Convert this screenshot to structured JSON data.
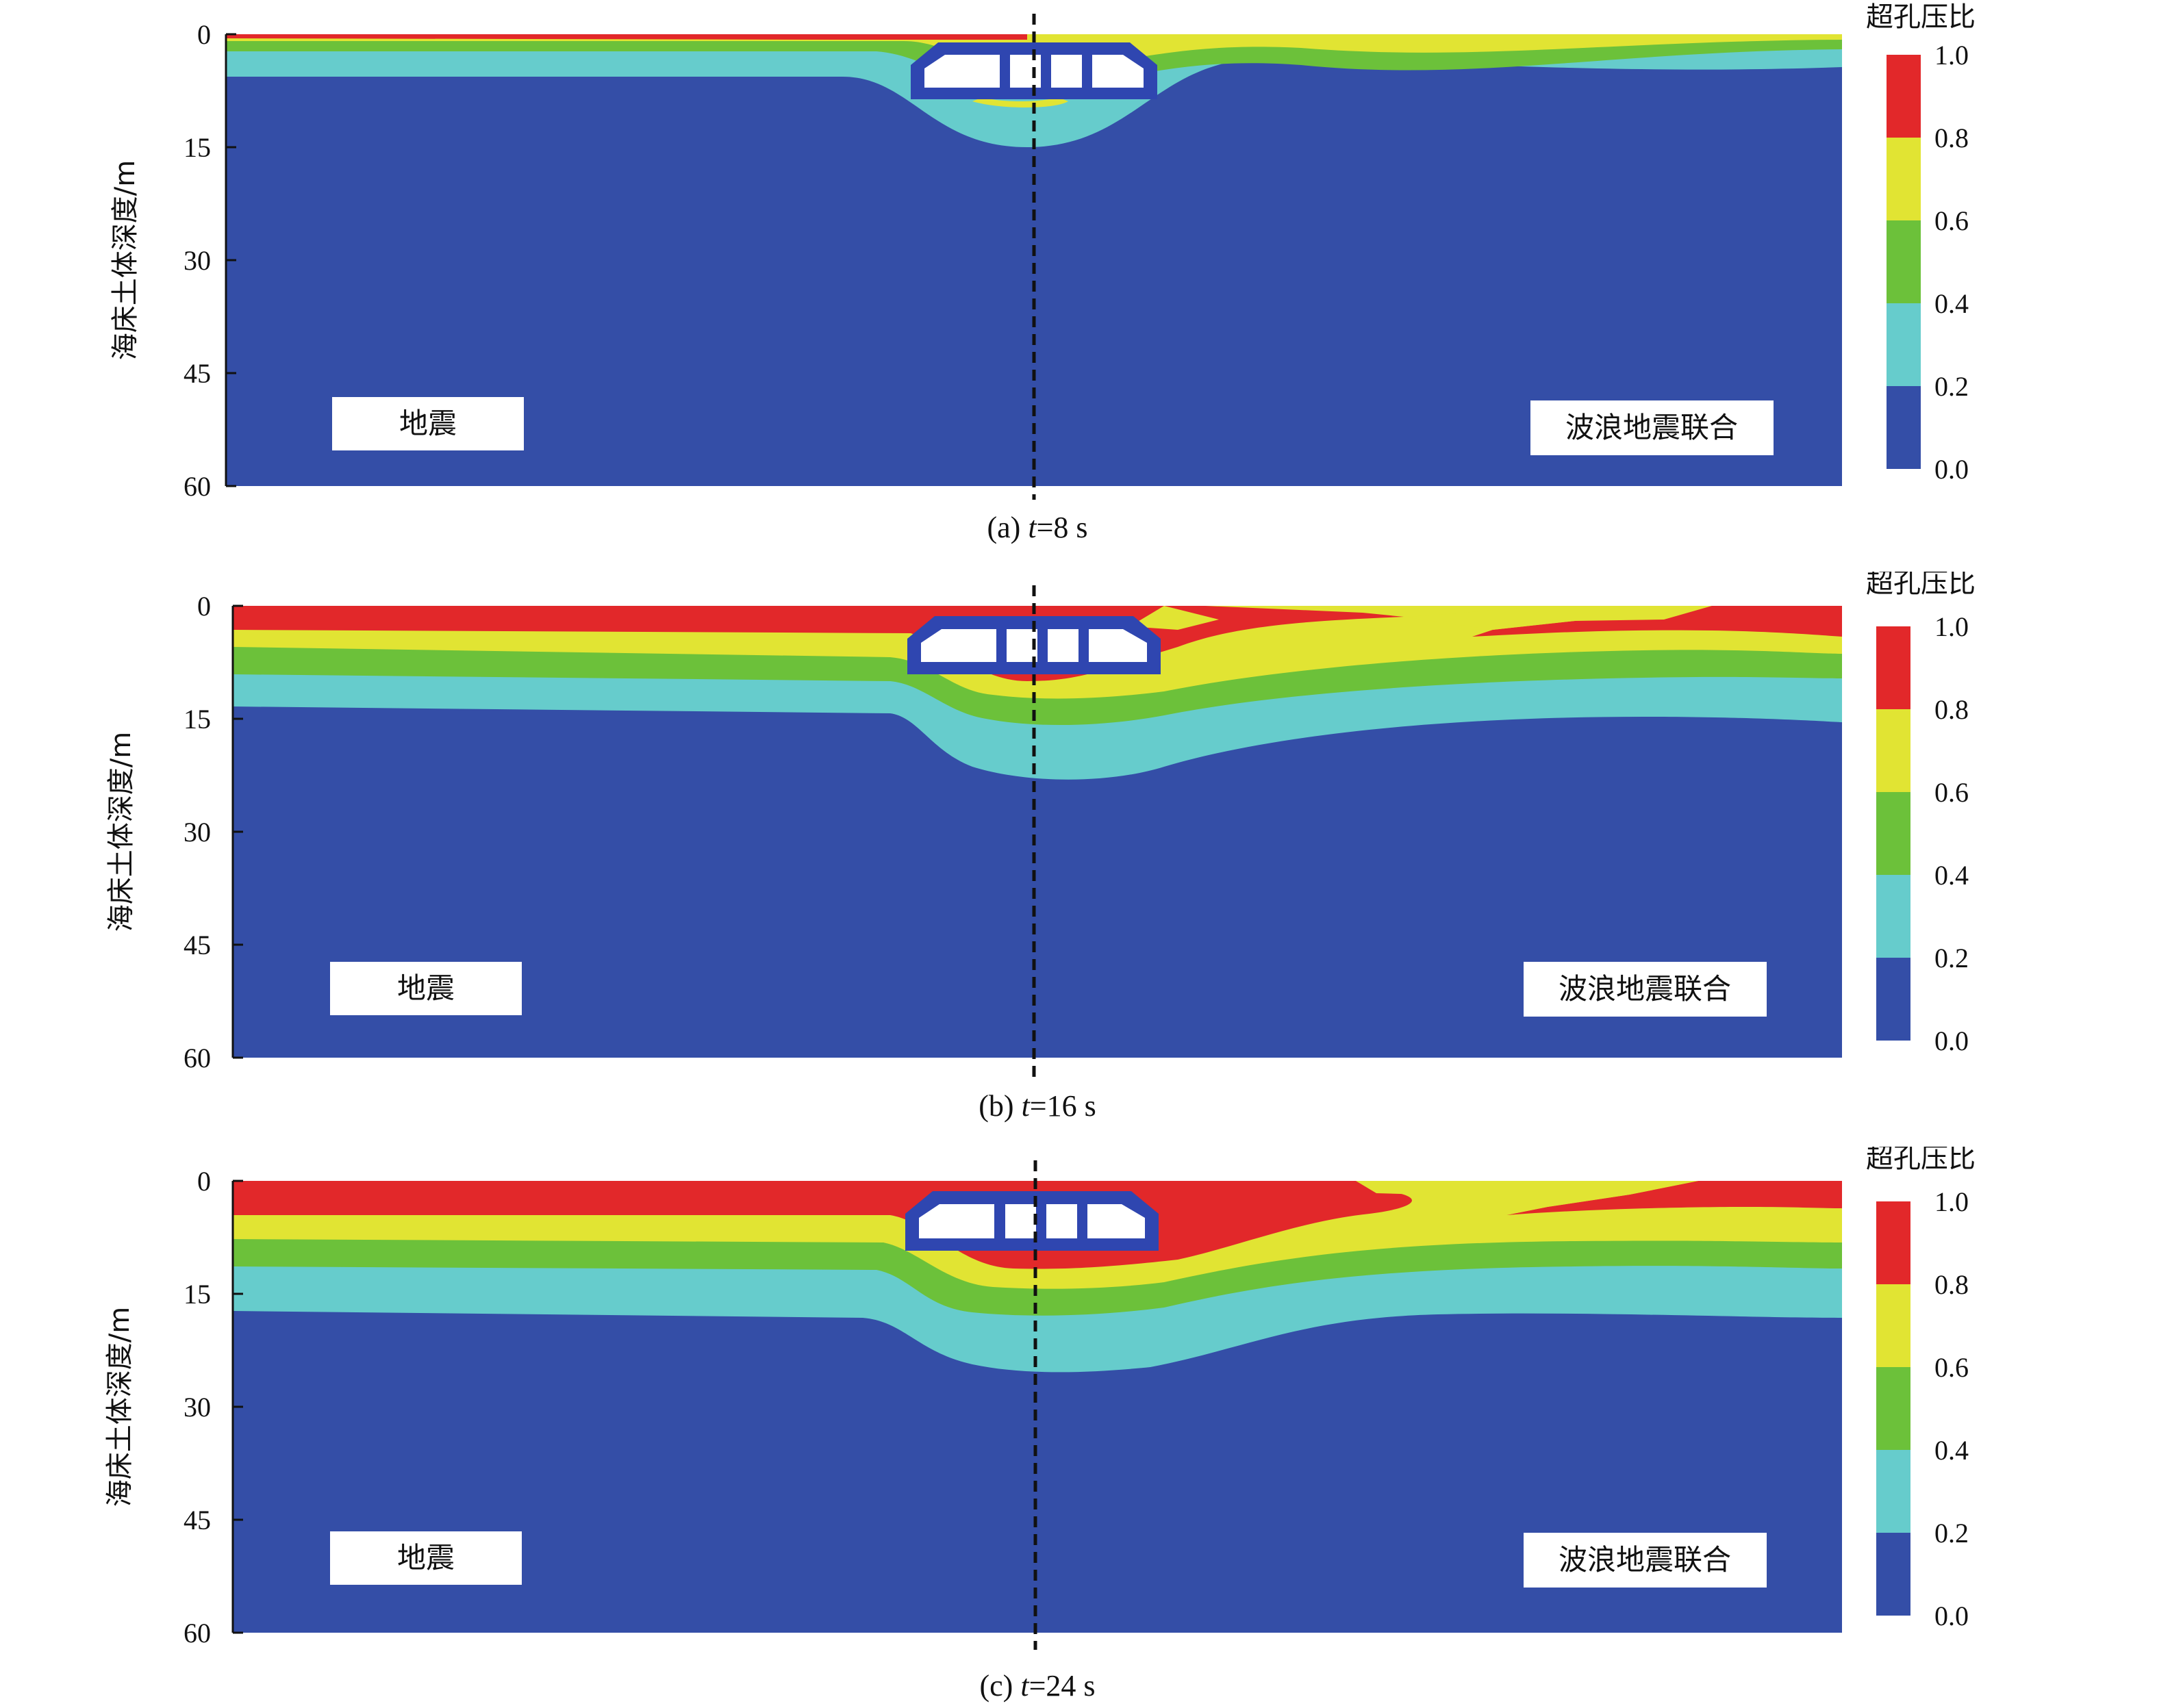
{
  "colors": {
    "band_0": "#344ea7",
    "band_1": "#66cccc",
    "band_2": "#6cc13a",
    "band_3": "#e1e433",
    "band_4": "#e2282a",
    "tunnel_fill": "#ffffff",
    "tunnel_edge": "#2f46b0"
  },
  "chart_data": [
    {
      "type": "heatmap",
      "ylabel": "海床土体深度/m",
      "yticks": [
        "0",
        "15",
        "30",
        "45",
        "60"
      ],
      "ylim": [
        0,
        60
      ],
      "legend_title": "超孔压比",
      "legend_ticks": [
        "1.0",
        "0.8",
        "0.6",
        "0.4",
        "0.2",
        "0.0"
      ],
      "left_label": "地震",
      "right_label": "波浪地震联合",
      "caption_prefix": "(a) ",
      "caption_var": "t",
      "caption_value": "=8 s"
    },
    {
      "type": "heatmap",
      "ylabel": "海床土体深度/m",
      "yticks": [
        "0",
        "15",
        "30",
        "45",
        "60"
      ],
      "ylim": [
        0,
        60
      ],
      "legend_title": "超孔压比",
      "legend_ticks": [
        "1.0",
        "0.8",
        "0.6",
        "0.4",
        "0.2",
        "0.0"
      ],
      "left_label": "地震",
      "right_label": "波浪地震联合",
      "caption_prefix": "(b) ",
      "caption_var": "t",
      "caption_value": "=16 s"
    },
    {
      "type": "heatmap",
      "ylabel": "海床土体深度/m",
      "yticks": [
        "0",
        "15",
        "30",
        "45",
        "60"
      ],
      "ylim": [
        0,
        60
      ],
      "legend_title": "超孔压比",
      "legend_ticks": [
        "1.0",
        "0.8",
        "0.6",
        "0.4",
        "0.2",
        "0.0"
      ],
      "left_label": "地震",
      "right_label": "波浪地震联合",
      "caption_prefix": "(c) ",
      "caption_var": "t",
      "caption_value": "=24 s"
    }
  ]
}
